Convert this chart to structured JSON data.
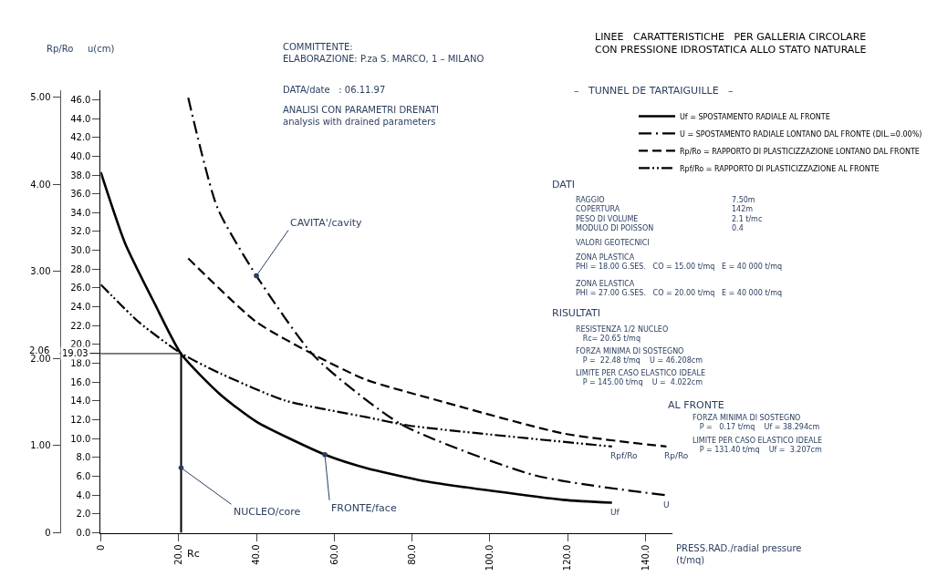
{
  "chart_data": {
    "type": "line",
    "title": "LINEE   CARATTERISTICHE   PER GALLERIA CIRCOLARE\nCON PRESSIONE IDROSTATICA ALLO STATO NATURALE",
    "subtitle": "–   TUNNEL DE TARTAIGUILLE   –",
    "xlabel": "PRESS.RAD./radial pressure\n(t/mq)",
    "ylabel": "u(cm)",
    "y2label": "Rp/Ro",
    "xlim": [
      0,
      147
    ],
    "ylim": [
      0,
      47
    ],
    "y2lim": [
      0,
      5.08
    ],
    "xticks": [
      {
        "value": 0,
        "label": "0"
      },
      {
        "value": 20,
        "label": "20.0"
      },
      {
        "value": 40,
        "label": "40.0"
      },
      {
        "value": 60,
        "label": "60.0"
      },
      {
        "value": 80,
        "label": "80.0"
      },
      {
        "value": 100,
        "label": "100.0"
      },
      {
        "value": 120,
        "label": "120.0"
      },
      {
        "value": 140,
        "label": "140.0"
      }
    ],
    "yticks": [
      {
        "value": 0,
        "label": "0.0"
      },
      {
        "value": 2,
        "label": "2.0"
      },
      {
        "value": 4,
        "label": "4.0"
      },
      {
        "value": 6,
        "label": "6.0"
      },
      {
        "value": 8,
        "label": "8.0"
      },
      {
        "value": 10,
        "label": "10.0"
      },
      {
        "value": 12,
        "label": "12.0"
      },
      {
        "value": 14,
        "label": "14.0"
      },
      {
        "value": 16,
        "label": "16.0"
      },
      {
        "value": 18,
        "label": "18.0"
      },
      {
        "value": 20,
        "label": "20.0"
      },
      {
        "value": 22,
        "label": "22.0"
      },
      {
        "value": 24,
        "label": "24.0"
      },
      {
        "value": 26,
        "label": "26.0"
      },
      {
        "value": 28,
        "label": "28.0"
      },
      {
        "value": 30,
        "label": "30.0"
      },
      {
        "value": 32,
        "label": "32.0"
      },
      {
        "value": 34,
        "label": "34.0"
      },
      {
        "value": 36,
        "label": "36.0"
      },
      {
        "value": 38,
        "label": "38.0"
      },
      {
        "value": 40,
        "label": "40.0"
      },
      {
        "value": 42,
        "label": "42.0"
      },
      {
        "value": 44,
        "label": "44.0"
      },
      {
        "value": 46,
        "label": "46.0"
      }
    ],
    "y2ticks": [
      0,
      {
        "value": 1,
        "label": "1.00"
      },
      {
        "value": 2,
        "label": "2.00"
      },
      {
        "value": 3,
        "label": "3.00"
      },
      {
        "value": 4,
        "label": "4.00"
      },
      {
        "value": 5,
        "label": "5.00"
      }
    ],
    "grid": false,
    "legend": "top right",
    "marker": "none",
    "series": [
      {
        "name": "Uf = SPOSTAMENTO RADIALE AL FRONTE",
        "color": "#000000",
        "line_style": "solid",
        "x": [
          0,
          6.2,
          13.9,
          20.65,
          30.7,
          40,
          57.6,
          68,
          83,
          118.8,
          131.4
        ],
        "values": [
          38.3,
          30.8,
          24.3,
          19.0,
          14.7,
          11.8,
          8.3,
          6.9,
          5.5,
          3.5,
          3.2
        ]
      },
      {
        "name": "U = SPOSTAMENTO RADIALE LONTANO DAL FRONTE (DIL.=0.00%)",
        "color": "#000000",
        "line_style": "dashdot",
        "x": [
          22.48,
          30,
          40,
          55,
          77.3,
          111.6,
          145
        ],
        "values": [
          46.2,
          34.5,
          27.3,
          18.7,
          11.5,
          6.1,
          4.0
        ]
      },
      {
        "name": "Rp/Ro = RAPPORTO DI PLASTICIZZAZIONE LONTANO DAL FRONTE",
        "color": "#000000",
        "line_style": "dashed",
        "axis": "y2",
        "x": [
          22.48,
          40,
          55,
          68,
          86.6,
          118.9,
          145.4
        ],
        "values": [
          3.15,
          2.42,
          2.04,
          1.76,
          1.52,
          1.14,
          0.99
        ]
      },
      {
        "name": "Rpf/Ro = RAPPORTO DI PLASTICIZZAZIONE AL FRONTE",
        "color": "#000000",
        "line_style": "dashdotdot",
        "axis": "y2",
        "x": [
          0,
          10,
          20.65,
          30.7,
          47.2,
          68,
          79.4,
          131.4
        ],
        "values": [
          2.85,
          2.41,
          2.06,
          1.83,
          1.52,
          1.33,
          1.23,
          0.99
        ]
      }
    ],
    "ref_lines": [
      {
        "axis": "y",
        "value": 19.03,
        "label": "19.03"
      },
      {
        "axis": "y2",
        "value": 2.06,
        "label": "2.06"
      },
      {
        "axis": "x",
        "value": 20.65,
        "label": "Rc"
      }
    ],
    "annotations": [
      "COMMITTENTE:\nELABORAZIONE: P.za S. MARCO, 1 – MILANO",
      "DATA/date   : 06.11.97",
      "ANALISI CON PARAMETRI DRENATI\nanalysis with drained parameters",
      "DATI",
      "RAGGIO\nCOPERTURA\nPESO DI VOLUME\nMODULO DI POISSON",
      "7.50m\n142m\n2.1 t/mc\n0.4",
      "VALORI GEOTECNICI",
      "ZONA PLASTICA\nPHI = 18.00 G.SES.   CO = 15.00 t/mq   E = 40 000 t/mq",
      "ZONA ELASTICA\nPHI = 27.00 G.SES.   CO = 20.00 t/mq   E = 40 000 t/mq",
      "RISULTATI",
      "RESISTENZA 1/2 NUCLEO\n   Rc= 20.65 t/mq",
      "FORZA MINIMA DI SOSTEGNO\n   P =  22.48 t/mq    U = 46.208cm",
      "LIMITE PER CASO ELASTICO IDEALE\n   P = 145.00 t/mq    U =  4.022cm",
      "AL FRONTE",
      "FORZA MINIMA DI SOSTEGNO\n   P =   0.17 t/mq    Uf = 38.294cm",
      "LIMITE PER CASO ELASTICO IDEALE\n   P = 131.40 t/mq    Uf =  3.207cm",
      {
        "text": "CAVITA'/cavity",
        "x": 40,
        "y": 27.3
      },
      {
        "text": "NUCLEO/core",
        "x": 20.65,
        "y": 6.9
      },
      {
        "text": "FRONTE/face",
        "x": 57.6,
        "y": 8.3
      },
      {
        "text": "Uf",
        "x": 131.4,
        "y": 3.2
      },
      {
        "text": "U",
        "x": 145,
        "y": 4.0
      },
      {
        "text": "Rpf/Ro",
        "x": 131.4,
        "y": 9.2
      },
      {
        "text": "Rp/Ro",
        "x": 145.4,
        "y": 9.2
      }
    ]
  }
}
